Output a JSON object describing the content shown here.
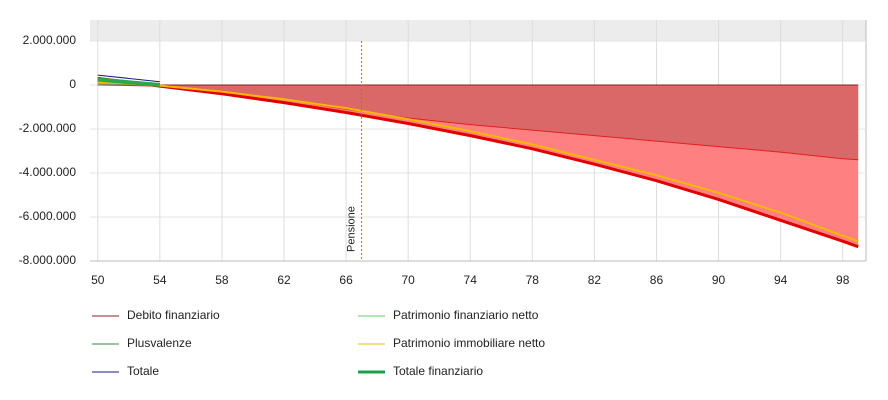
{
  "chart_data": {
    "type": "line",
    "x": [
      50,
      54,
      58,
      62,
      66,
      70,
      74,
      78,
      82,
      86,
      90,
      94,
      98,
      99
    ],
    "xlim": [
      49.5,
      99.5
    ],
    "xticks": [
      50,
      54,
      58,
      62,
      66,
      70,
      74,
      78,
      82,
      86,
      90,
      94,
      98
    ],
    "ylim": [
      -8000000,
      2000000
    ],
    "yticks": [
      {
        "value": -8000000,
        "label": "-8.000.000"
      },
      {
        "value": -6000000,
        "label": "-6.000.000"
      },
      {
        "value": -4000000,
        "label": "-4.000.000"
      },
      {
        "value": -2000000,
        "label": "-2.000.000"
      },
      0,
      {
        "value": 2000000,
        "label": "2.000.000"
      }
    ],
    "grid": true,
    "annotation": {
      "x": 67,
      "label": "Pensione",
      "color": "#b07a00"
    },
    "series": [
      {
        "name": "Debito finanziario",
        "color": "#8b2020",
        "line_color": "#e02020",
        "fill": "rgba(150,60,60,0.35)",
        "values": [
          0,
          -50000,
          -300000,
          -650000,
          -1100000,
          -1500000,
          -1800000,
          -2050000,
          -2300000,
          -2550000,
          -2800000,
          -3050000,
          -3350000,
          -3400000
        ]
      },
      {
        "name": "Patrimonio finanziario netto",
        "color": "#66cc66",
        "line_color": "#e00000",
        "fill": "#ff8080",
        "width": 3,
        "values": [
          300000,
          -50000,
          -400000,
          -800000,
          -1250000,
          -1750000,
          -2300000,
          -2900000,
          -3600000,
          -4350000,
          -5200000,
          -6150000,
          -7100000,
          -7350000
        ]
      },
      {
        "name": "Plusvalenze",
        "color": "#2e8b3e",
        "line_color": "#2e8b3e",
        "values": [
          0,
          0,
          null,
          null,
          null,
          null,
          null,
          null,
          null,
          null,
          null,
          null,
          null,
          null
        ]
      },
      {
        "name": "Patrimonio immobiliare netto",
        "color": "#f2c200",
        "line_color": "#f5b800",
        "width": 2,
        "values": [
          150000,
          -30000,
          -300000,
          -650000,
          -1050000,
          -1550000,
          -2100000,
          -2700000,
          -3400000,
          -4100000,
          -4900000,
          -5800000,
          -6850000,
          -7100000
        ]
      },
      {
        "name": "Totale",
        "color": "#1a1a80",
        "line_color": "#1a1a80",
        "values": [
          450000,
          150000,
          null,
          null,
          null,
          null,
          null,
          null,
          null,
          null,
          null,
          null,
          null,
          null
        ]
      },
      {
        "name": "Totale finanziario",
        "color": "#1aa050",
        "line_color": "#2ca84a",
        "width": 4,
        "values": [
          250000,
          0,
          null,
          null,
          null,
          null,
          null,
          null,
          null,
          null,
          null,
          null,
          null,
          null
        ]
      }
    ]
  }
}
